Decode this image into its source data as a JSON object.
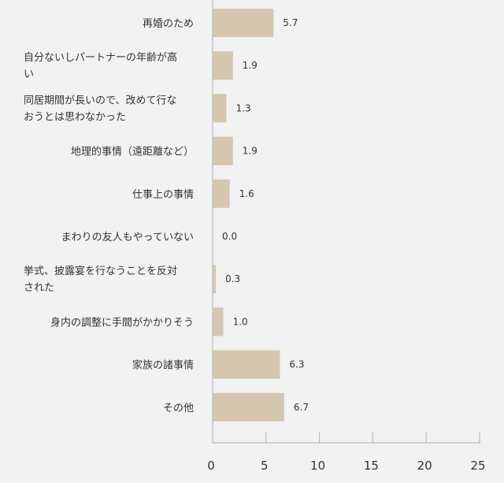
{
  "chart_data": {
    "type": "bar",
    "orientation": "horizontal",
    "categories": [
      [
        "再婚のため"
      ],
      [
        "自分ないしパートナーの年齢が高",
        "い"
      ],
      [
        "同居期間が長いので、改めて行な",
        "おうとは思わなかった"
      ],
      [
        "地理的事情（遠距離など）"
      ],
      [
        "仕事上の事情"
      ],
      [
        "まわりの友人もやっていない"
      ],
      [
        "挙式、披露宴を行なうことを反対",
        "された"
      ],
      [
        "身内の調整に手間がかかりそう"
      ],
      [
        "家族の諸事情"
      ],
      [
        "その他"
      ]
    ],
    "values": [
      5.7,
      1.9,
      1.3,
      1.9,
      1.6,
      0.0,
      0.3,
      1.0,
      6.3,
      6.7
    ],
    "value_labels": [
      "5.7",
      "1.9",
      "1.3",
      "1.9",
      "1.6",
      "0.0",
      "0.3",
      "1.0",
      "6.3",
      "6.7"
    ],
    "x_ticks": [
      "0",
      "5",
      "10",
      "15",
      "20",
      "25"
    ],
    "xlim": [
      0,
      25
    ],
    "title": "",
    "xlabel": "",
    "ylabel": "",
    "grid": false,
    "legend": "none",
    "bar_color": "#d5c6af",
    "axis_color": "#bbbbbb"
  }
}
